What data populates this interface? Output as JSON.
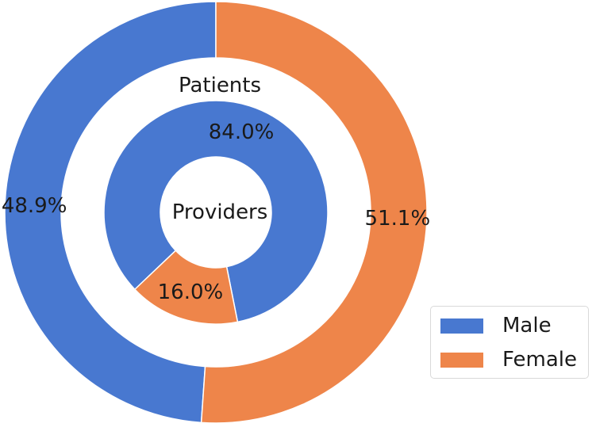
{
  "chart_data": {
    "type": "pie",
    "variant": "nested-donut",
    "colors": {
      "Male": "#4878d0",
      "Female": "#ee854a"
    },
    "legend": {
      "placement": "bottom-right",
      "entries": [
        "Male",
        "Female"
      ]
    },
    "rings": [
      {
        "name": "Patients",
        "position": "outer",
        "label": "Patients",
        "slices": [
          {
            "category": "Male",
            "value": 48.9,
            "label": "48.9%"
          },
          {
            "category": "Female",
            "value": 51.1,
            "label": "51.1%"
          }
        ]
      },
      {
        "name": "Providers",
        "position": "inner",
        "label": "Providers",
        "slices": [
          {
            "category": "Male",
            "value": 84.0,
            "label": "84.0%"
          },
          {
            "category": "Female",
            "value": 16.0,
            "label": "16.0%"
          }
        ]
      }
    ]
  }
}
